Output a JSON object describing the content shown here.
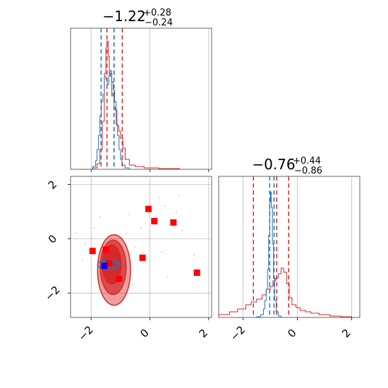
{
  "chart_data": {
    "type": "corner",
    "colors": {
      "red": "#d62728",
      "blue": "#1f77b4",
      "grid": "#b0b0b0",
      "marker_red": "#ff0000",
      "marker_blue": "#0000ff"
    },
    "params": [
      {
        "name": "param_1",
        "title": {
          "median": "−1.22",
          "plus": "+0.28",
          "minus": "−0.24"
        },
        "range": [
          -2.7,
          2.1
        ],
        "ticks": [
          -2,
          0,
          2
        ],
        "tick_labels": [
          "−2",
          "0",
          "2"
        ],
        "red_quantile_lines": [
          -1.46,
          -1.22,
          -0.94
        ],
        "blue_quantile_lines": [
          -1.66,
          -1.22
        ]
      },
      {
        "name": "param_2",
        "title": {
          "median": "−0.76",
          "plus": "+0.44",
          "minus": "−0.86"
        },
        "range": [
          -2.9,
          2.3
        ],
        "ticks": [
          -2,
          0,
          2
        ],
        "tick_labels": [
          "−2",
          "0",
          "2"
        ],
        "red_quantile_lines": [
          -1.62,
          -0.76,
          -0.32
        ],
        "blue_quantile_lines": [
          -1.02,
          -0.86
        ]
      }
    ],
    "hist_1": {
      "red": [
        [
          -2.3,
          0
        ],
        [
          -1.95,
          0.01
        ],
        [
          -1.8,
          0.04
        ],
        [
          -1.7,
          0.14
        ],
        [
          -1.62,
          0.34
        ],
        [
          -1.55,
          0.68
        ],
        [
          -1.5,
          0.86
        ],
        [
          -1.46,
          0.91
        ],
        [
          -1.42,
          0.8
        ],
        [
          -1.38,
          0.66
        ],
        [
          -1.34,
          0.68
        ],
        [
          -1.3,
          0.52
        ],
        [
          -1.26,
          0.54
        ],
        [
          -1.22,
          0.44
        ],
        [
          -1.18,
          0.42
        ],
        [
          -1.12,
          0.31
        ],
        [
          -1.06,
          0.27
        ],
        [
          -1.0,
          0.22
        ],
        [
          -0.92,
          0.15
        ],
        [
          -0.84,
          0.07
        ],
        [
          -0.7,
          0.03
        ],
        [
          -0.5,
          0.02
        ],
        [
          -0.2,
          0.01
        ],
        [
          0.3,
          0.005
        ],
        [
          1.0,
          0.0
        ]
      ],
      "blue": [
        [
          -2.1,
          0
        ],
        [
          -1.95,
          0.02
        ],
        [
          -1.85,
          0.06
        ],
        [
          -1.8,
          0.14
        ],
        [
          -1.75,
          0.24
        ],
        [
          -1.7,
          0.38
        ],
        [
          -1.65,
          0.48
        ],
        [
          -1.6,
          0.53
        ],
        [
          -1.55,
          0.66
        ],
        [
          -1.5,
          0.64
        ],
        [
          -1.45,
          0.6
        ],
        [
          -1.4,
          0.66
        ],
        [
          -1.35,
          0.7
        ],
        [
          -1.3,
          0.62
        ],
        [
          -1.25,
          0.56
        ],
        [
          -1.2,
          0.48
        ],
        [
          -1.15,
          0.32
        ],
        [
          -1.1,
          0.24
        ],
        [
          -1.05,
          0.14
        ],
        [
          -1.0,
          0.07
        ],
        [
          -0.95,
          0.03
        ],
        [
          -0.85,
          0.01
        ],
        [
          -0.7,
          0.0
        ]
      ]
    },
    "hist_2": {
      "red": [
        [
          -2.9,
          0.02
        ],
        [
          -2.5,
          0.04
        ],
        [
          -2.2,
          0.06
        ],
        [
          -1.9,
          0.09
        ],
        [
          -1.7,
          0.11
        ],
        [
          -1.5,
          0.13
        ],
        [
          -1.3,
          0.16
        ],
        [
          -1.15,
          0.2
        ],
        [
          -1.0,
          0.22
        ],
        [
          -0.9,
          0.26
        ],
        [
          -0.8,
          0.28
        ],
        [
          -0.7,
          0.31
        ],
        [
          -0.6,
          0.35
        ],
        [
          -0.5,
          0.32
        ],
        [
          -0.4,
          0.24
        ],
        [
          -0.3,
          0.14
        ],
        [
          -0.2,
          0.09
        ],
        [
          -0.05,
          0.07
        ],
        [
          0.1,
          0.05
        ],
        [
          0.3,
          0.04
        ],
        [
          0.5,
          0.03
        ],
        [
          0.8,
          0.02
        ],
        [
          1.2,
          0.01
        ],
        [
          1.6,
          0.005
        ],
        [
          2.0,
          0.0
        ]
      ],
      "blue": [
        [
          -1.7,
          0
        ],
        [
          -1.5,
          0.005
        ],
        [
          -1.35,
          0.02
        ],
        [
          -1.25,
          0.06
        ],
        [
          -1.2,
          0.12
        ],
        [
          -1.15,
          0.2
        ],
        [
          -1.1,
          0.34
        ],
        [
          -1.06,
          0.58
        ],
        [
          -1.02,
          0.82
        ],
        [
          -0.99,
          0.89
        ],
        [
          -0.96,
          0.78
        ],
        [
          -0.92,
          0.52
        ],
        [
          -0.88,
          0.28
        ],
        [
          -0.84,
          0.12
        ],
        [
          -0.78,
          0.04
        ],
        [
          -0.7,
          0.01
        ],
        [
          -0.6,
          0.0
        ]
      ]
    },
    "joint": {
      "red_contours": [
        {
          "cx": -1.22,
          "cy": -1.15,
          "rx": 0.56,
          "ry": 1.3,
          "opacity": 0.45
        },
        {
          "cx": -1.25,
          "cy": -1.05,
          "rx": 0.44,
          "ry": 1.0,
          "opacity": 0.7
        },
        {
          "cx": -1.3,
          "cy": -0.95,
          "rx": 0.32,
          "ry": 0.72,
          "opacity": 0.95
        }
      ],
      "blue_contours": [
        {
          "cx": -1.4,
          "cy": -0.95,
          "rx": 0.38,
          "ry": 0.18
        },
        {
          "cx": -1.38,
          "cy": -0.95,
          "rx": 0.26,
          "ry": 0.12
        }
      ],
      "red_squares": [
        [
          -1.95,
          -0.45
        ],
        [
          -1.5,
          -0.4
        ],
        [
          -1.38,
          -0.9
        ],
        [
          -1.05,
          -1.48
        ],
        [
          -0.25,
          -0.7
        ],
        [
          -0.05,
          1.1
        ],
        [
          0.15,
          0.65
        ],
        [
          0.8,
          0.6
        ],
        [
          1.6,
          -1.25
        ]
      ],
      "blue_square": [
        -1.55,
        -1.0
      ],
      "scatter_points": [
        [
          -2.5,
          0.2
        ],
        [
          -2.2,
          -0.2
        ],
        [
          -1.9,
          0.4
        ],
        [
          -1.7,
          0.8
        ],
        [
          -0.8,
          0.2
        ],
        [
          -0.5,
          -0.3
        ],
        [
          -0.3,
          0.4
        ],
        [
          0.3,
          1.5
        ],
        [
          0.5,
          1.2
        ],
        [
          0.9,
          1.0
        ],
        [
          1.1,
          0.3
        ],
        [
          1.5,
          -0.6
        ],
        [
          -2.3,
          -0.8
        ],
        [
          -0.6,
          -1.7
        ],
        [
          0.4,
          -0.5
        ],
        [
          1.0,
          1.6
        ],
        [
          -2.0,
          -1.1
        ],
        [
          -1.6,
          -1.3
        ],
        [
          0.6,
          -1.4
        ],
        [
          -0.7,
          0.9
        ]
      ]
    }
  }
}
